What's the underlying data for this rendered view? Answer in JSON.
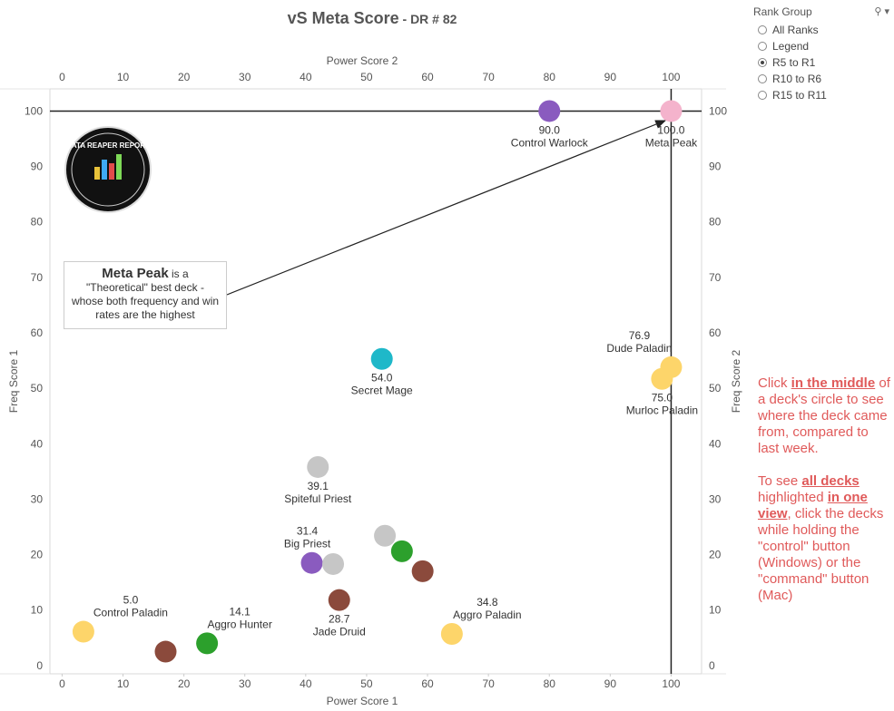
{
  "title": {
    "main": "vS Meta Score",
    "sub": " - DR # 82"
  },
  "filter": {
    "title": "Rank Group",
    "options": [
      {
        "label": "All Ranks",
        "selected": false
      },
      {
        "label": "Legend",
        "selected": false
      },
      {
        "label": "R5 to R1",
        "selected": true
      },
      {
        "label": "R10 to R6",
        "selected": false
      },
      {
        "label": "R15 to R11",
        "selected": false
      }
    ]
  },
  "annotation": {
    "bold": "Meta Peak",
    "rest": " is a \"Theoretical\" best deck - whose both frequency and win rates are the highest"
  },
  "side_note": {
    "p1_pre": "Click ",
    "p1_bold": "in the middle",
    "p1_post": " of a deck's circle to see where the deck came from, compared to last week.",
    "p2_pre": "To see ",
    "p2_bold1": "all decks",
    "p2_mid1": " highlighted ",
    "p2_bold2": "in one view",
    "p2_post": ", click the decks while holding the \"control\" button (Windows) or the \"command\" button (Mac)"
  },
  "logo_text": "DATA REAPER REPORT",
  "chart_data": {
    "type": "scatter",
    "xlabel": "Power Score 1",
    "xlabel_top": "Power Score 2",
    "ylabel": "Freq Score 1",
    "ylabel_right": "Freq Score 2",
    "xlim": [
      -2,
      105
    ],
    "ylim": [
      -1.5,
      104
    ],
    "xticks": [
      0,
      10,
      20,
      30,
      40,
      50,
      60,
      70,
      80,
      90,
      100
    ],
    "yticks": [
      0,
      10,
      20,
      30,
      40,
      50,
      60,
      70,
      80,
      90,
      100
    ],
    "reference_lines": {
      "x": 100,
      "y": 100
    },
    "colors": {
      "warlock": "#8a5bbf",
      "meta_peak": "#f4b3cc",
      "paladin": "#fdd56a",
      "mage": "#1fb8c9",
      "priest_grey": "#c6c6c6",
      "druid": "#8b4a3c",
      "hunter": "#2ca02c"
    },
    "points": [
      {
        "x": 80,
        "y": 100,
        "color": "warlock",
        "score": "90.0",
        "name": "Control Warlock",
        "label_pos": "below"
      },
      {
        "x": 100,
        "y": 100,
        "color": "meta_peak",
        "score": "100.0",
        "name": "Meta Peak",
        "label_pos": "below"
      },
      {
        "x": 100,
        "y": 53.8,
        "color": "paladin",
        "score": "76.9",
        "name": "Dude Paladin",
        "label_pos": "above"
      },
      {
        "x": 98.5,
        "y": 51.7,
        "color": "paladin",
        "score": "75.0",
        "name": "Murloc Paladin",
        "label_pos": "below"
      },
      {
        "x": 52.5,
        "y": 55.3,
        "color": "mage",
        "score": "54.0",
        "name": "Secret Mage",
        "label_pos": "below"
      },
      {
        "x": 42,
        "y": 35.8,
        "color": "priest_grey",
        "score": "39.1",
        "name": "Spiteful Priest",
        "label_pos": "below"
      },
      {
        "x": 41,
        "y": 18.5,
        "color": "warlock",
        "score": "31.4",
        "name": "Big Priest",
        "label_pos": "above"
      },
      {
        "x": 44.5,
        "y": 18.3,
        "color": "priest_grey"
      },
      {
        "x": 53,
        "y": 23.4,
        "color": "priest_grey"
      },
      {
        "x": 55.8,
        "y": 20.6,
        "color": "hunter"
      },
      {
        "x": 59.2,
        "y": 17,
        "color": "druid"
      },
      {
        "x": 45.5,
        "y": 11.8,
        "color": "druid",
        "score": "28.7",
        "name": "Jade Druid",
        "label_pos": "below"
      },
      {
        "x": 3.5,
        "y": 6.1,
        "color": "paladin",
        "score": "5.0",
        "name": "Control Paladin",
        "label_pos": "above"
      },
      {
        "x": 17,
        "y": 2.5,
        "color": "druid"
      },
      {
        "x": 23.8,
        "y": 4,
        "color": "hunter",
        "score": "14.1",
        "name": "Aggro Hunter",
        "label_pos": "above"
      },
      {
        "x": 64,
        "y": 5.7,
        "color": "paladin",
        "score": "34.8",
        "name": "Aggro Paladin",
        "label_pos": "above"
      }
    ]
  }
}
